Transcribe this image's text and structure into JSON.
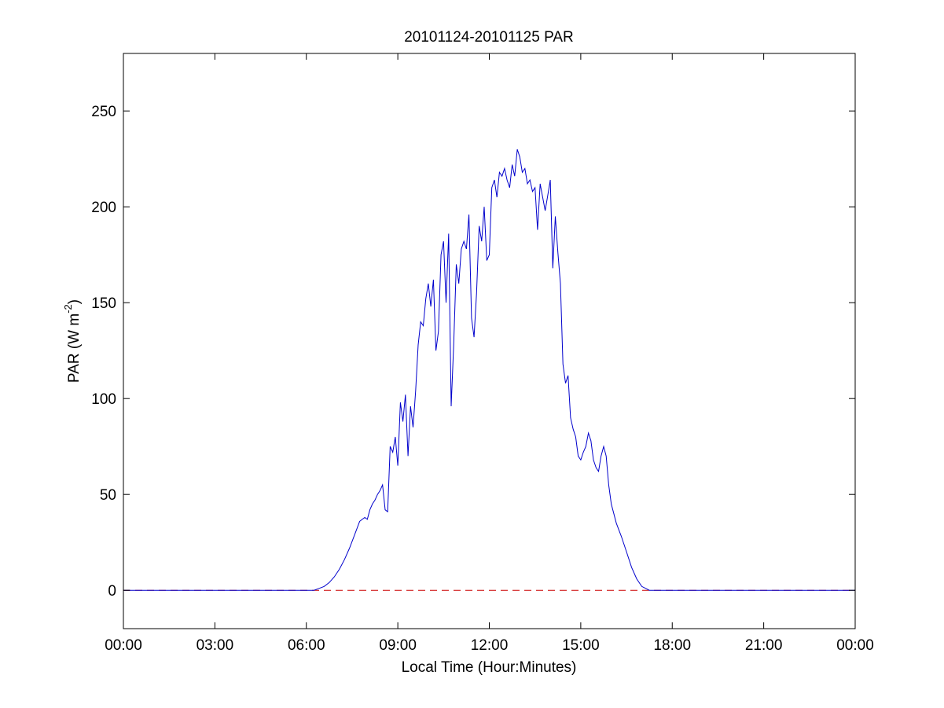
{
  "chart_data": {
    "type": "line",
    "title": "20101124-20101125 PAR",
    "xlabel": "Local Time (Hour:Minutes)",
    "ylabel_main": "PAR (W m",
    "ylabel_sup": "-2",
    "ylabel_tail": ")",
    "xlim": [
      "00:00",
      "24:00"
    ],
    "ylim": [
      -20,
      280
    ],
    "x_ticks": [
      "00:00",
      "03:00",
      "06:00",
      "09:00",
      "12:00",
      "15:00",
      "18:00",
      "21:00",
      "00:00"
    ],
    "y_ticks": [
      0,
      50,
      100,
      150,
      200,
      250
    ],
    "grid": false,
    "legend": "none",
    "series": [
      {
        "line_color": "#0000cc",
        "style": "solid",
        "x": [
          "00:00",
          "06:00",
          "06:15",
          "06:25",
          "06:35",
          "06:45",
          "06:55",
          "07:05",
          "07:15",
          "07:25",
          "07:35",
          "07:45",
          "07:55",
          "08:00",
          "08:05",
          "08:10",
          "08:15",
          "08:20",
          "08:25",
          "08:30",
          "08:35",
          "08:40",
          "08:45",
          "08:50",
          "08:55",
          "09:00",
          "09:05",
          "09:10",
          "09:15",
          "09:20",
          "09:25",
          "09:30",
          "09:35",
          "09:40",
          "09:45",
          "09:50",
          "09:55",
          "10:00",
          "10:05",
          "10:10",
          "10:15",
          "10:20",
          "10:25",
          "10:30",
          "10:35",
          "10:40",
          "10:45",
          "10:50",
          "10:55",
          "11:00",
          "11:05",
          "11:10",
          "11:15",
          "11:20",
          "11:25",
          "11:30",
          "11:35",
          "11:40",
          "11:45",
          "11:50",
          "11:55",
          "12:00",
          "12:05",
          "12:10",
          "12:15",
          "12:20",
          "12:25",
          "12:30",
          "12:35",
          "12:40",
          "12:45",
          "12:50",
          "12:55",
          "13:00",
          "13:05",
          "13:10",
          "13:15",
          "13:20",
          "13:25",
          "13:30",
          "13:35",
          "13:40",
          "13:45",
          "13:50",
          "13:55",
          "14:00",
          "14:05",
          "14:10",
          "14:15",
          "14:20",
          "14:25",
          "14:30",
          "14:35",
          "14:40",
          "14:45",
          "14:50",
          "14:55",
          "15:00",
          "15:05",
          "15:10",
          "15:15",
          "15:20",
          "15:25",
          "15:30",
          "15:35",
          "15:40",
          "15:45",
          "15:50",
          "15:55",
          "16:00",
          "16:10",
          "16:20",
          "16:30",
          "16:40",
          "16:50",
          "17:00",
          "17:15",
          "17:30",
          "24:00"
        ],
        "y": [
          0,
          0,
          0,
          1,
          2,
          4,
          7,
          11,
          16,
          22,
          29,
          36,
          38,
          37,
          42,
          45,
          47,
          50,
          52,
          55,
          42,
          41,
          75,
          72,
          80,
          65,
          98,
          88,
          102,
          70,
          96,
          85,
          104,
          128,
          140,
          138,
          152,
          160,
          148,
          162,
          125,
          135,
          175,
          182,
          150,
          186,
          96,
          128,
          170,
          160,
          178,
          182,
          178,
          196,
          142,
          132,
          155,
          190,
          182,
          200,
          172,
          175,
          210,
          214,
          205,
          218,
          216,
          220,
          214,
          210,
          222,
          216,
          230,
          226,
          218,
          220,
          212,
          214,
          208,
          210,
          188,
          212,
          205,
          198,
          206,
          214,
          168,
          195,
          176,
          160,
          118,
          108,
          112,
          90,
          84,
          80,
          70,
          68,
          72,
          75,
          82,
          78,
          68,
          64,
          62,
          70,
          75,
          70,
          55,
          45,
          35,
          28,
          20,
          12,
          6,
          2,
          0,
          0,
          0
        ]
      },
      {
        "line_color": "#cc0000",
        "style": "dashed",
        "x": [
          "00:00",
          "24:00"
        ],
        "y": [
          0,
          0
        ]
      }
    ]
  }
}
